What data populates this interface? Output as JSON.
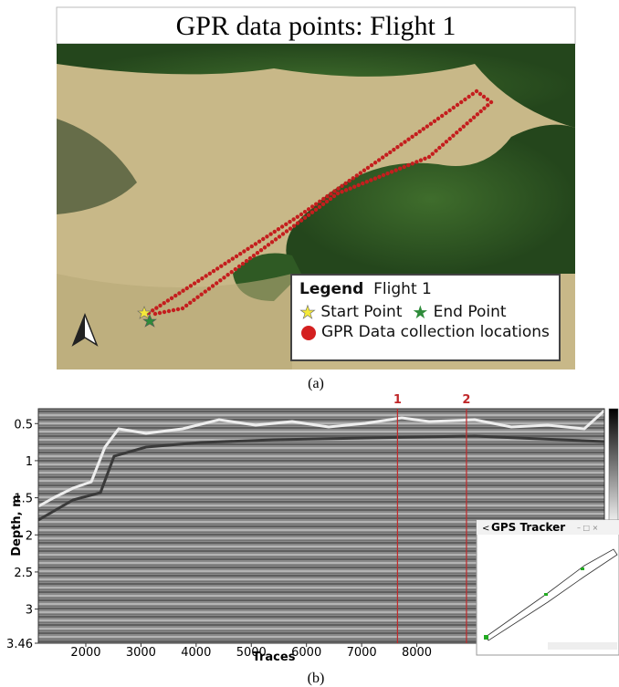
{
  "panel_a": {
    "title": "GPR data points: Flight 1",
    "legend_title": "Legend",
    "legend_subtitle": "Flight 1",
    "start_label": "Start Point",
    "end_label": "End Point",
    "points_label": "GPR Data collection locations",
    "caption": "(a)"
  },
  "panel_b": {
    "y_label": "Depth, m",
    "x_label": "Traces",
    "ylim": [
      0.3,
      3.46
    ],
    "yticks": [
      0.5,
      1,
      1.5,
      2,
      2.5,
      3,
      3.46
    ],
    "xlim": [
      1140,
      11400
    ],
    "xticks": [
      2000,
      3000,
      4000,
      5000,
      6000,
      7000,
      8000
    ],
    "markers": [
      {
        "label": "1",
        "x": 7650
      },
      {
        "label": "2",
        "x": 8900
      }
    ],
    "inset_title": "GPS Tracker",
    "caption": "(b)"
  }
}
